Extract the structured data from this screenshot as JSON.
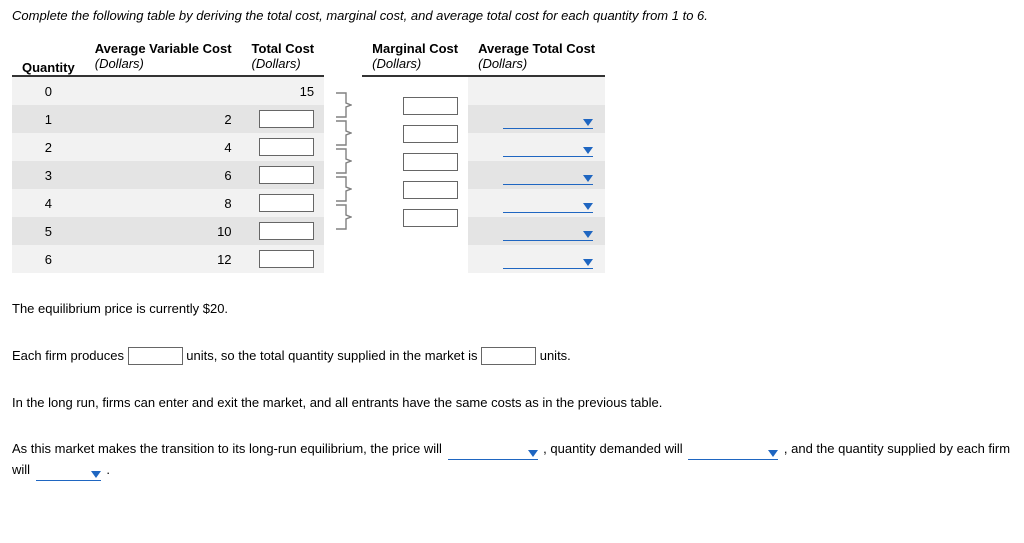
{
  "instruction": "Complete the following table by deriving the total cost, marginal cost, and average total cost for each quantity from 1 to 6.",
  "headers": {
    "qty": "Quantity",
    "avc": "Average Variable Cost",
    "tc": "Total Cost",
    "mc": "Marginal Cost",
    "atc": "Average Total Cost",
    "unit": "(Dollars)"
  },
  "rows": [
    {
      "q": "0",
      "avc": "",
      "tc": "15",
      "tc_input": false,
      "mc_input": false,
      "atc_input": false
    },
    {
      "q": "1",
      "avc": "2",
      "tc": "",
      "tc_input": true,
      "mc_input": true,
      "atc_input": true
    },
    {
      "q": "2",
      "avc": "4",
      "tc": "",
      "tc_input": true,
      "mc_input": true,
      "atc_input": true
    },
    {
      "q": "3",
      "avc": "6",
      "tc": "",
      "tc_input": true,
      "mc_input": true,
      "atc_input": true
    },
    {
      "q": "4",
      "avc": "8",
      "tc": "",
      "tc_input": true,
      "mc_input": true,
      "atc_input": true
    },
    {
      "q": "5",
      "avc": "10",
      "tc": "",
      "tc_input": true,
      "mc_input": true,
      "atc_input": true
    },
    {
      "q": "6",
      "avc": "12",
      "tc": "",
      "tc_input": true,
      "mc_input": false,
      "atc_input": true
    }
  ],
  "text": {
    "eq_price": "The equilibrium price is currently $20.",
    "firm_produces_1": "Each firm produces",
    "firm_produces_2": "units, so the total quantity supplied in the market is",
    "firm_produces_3": "units.",
    "long_run": "In the long run, firms can enter and exit the market, and all entrants have the same costs as in the previous table.",
    "transition_1": "As this market makes the transition to its long-run equilibrium, the price will",
    "transition_2": ", quantity demanded will",
    "transition_3": ", and the quantity supplied by each firm will",
    "period": "."
  },
  "style": {
    "brace_color": "#808080",
    "caret_color": "#1f66c1"
  }
}
